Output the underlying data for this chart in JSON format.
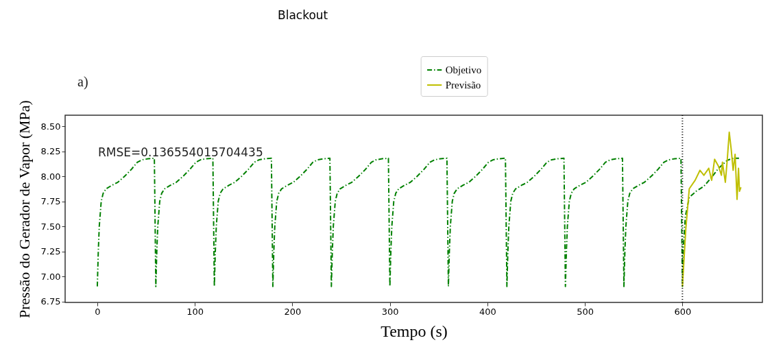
{
  "chart_data": {
    "type": "line",
    "title": "Blackout",
    "xlabel": "Tempo (s)",
    "ylabel": "Pressão do Gerador de Vapor (MPa)",
    "annotations": [
      "a)",
      "RMSE=0.136554015704435"
    ],
    "xlim": [
      -33,
      682
    ],
    "xticks": [
      0,
      100,
      200,
      300,
      400,
      500,
      600
    ],
    "ylim": [
      6.74,
      8.61
    ],
    "yticks": [
      {
        "value": 6.75,
        "label": "6.75"
      },
      {
        "value": 7.0,
        "label": "7.00"
      },
      {
        "value": 7.25,
        "label": "7.25"
      },
      {
        "value": 7.5,
        "label": "7.50"
      },
      {
        "value": 7.75,
        "label": "7.75"
      },
      {
        "value": 8.0,
        "label": "8.00"
      },
      {
        "value": 8.25,
        "label": "8.25"
      },
      {
        "value": 8.5,
        "label": "8.50"
      }
    ],
    "legend": "top",
    "grid": false,
    "ref_lines": [
      {
        "axis": "x",
        "value": 600,
        "color": "#000000",
        "line_style": "dotted"
      }
    ],
    "series": [
      {
        "name": "Objetivo",
        "color": "#008000",
        "line_style": "dashdot",
        "x": [
          0,
          1,
          2,
          4,
          6,
          9,
          15,
          21,
          28,
          35,
          41,
          46,
          52,
          58.5,
          60,
          61,
          62,
          64,
          66,
          69,
          75,
          81,
          88,
          95,
          101,
          106,
          112,
          118.5,
          120,
          121,
          122,
          124,
          126,
          129,
          135,
          141,
          148,
          155,
          161,
          166,
          172,
          178.5,
          180,
          181,
          182,
          184,
          186,
          189,
          195,
          201,
          208,
          215,
          221,
          226,
          232,
          238.5,
          240,
          241,
          242,
          244,
          246,
          249,
          255,
          261,
          268,
          275,
          281,
          286,
          292,
          298.5,
          300,
          301,
          302,
          304,
          306,
          309,
          315,
          321,
          328,
          335,
          341,
          346,
          352,
          358.5,
          360,
          361,
          362,
          364,
          366,
          369,
          375,
          381,
          388,
          395,
          401,
          406,
          412,
          418.5,
          420,
          421,
          422,
          424,
          426,
          429,
          435,
          441,
          448,
          455,
          461,
          466,
          472,
          478.5,
          480,
          481,
          482,
          484,
          486,
          489,
          495,
          501,
          508,
          515,
          521,
          526,
          532,
          538.5,
          540,
          541,
          542,
          544,
          546,
          549,
          555,
          561,
          568,
          575,
          581,
          586,
          592,
          598.5,
          600,
          601,
          603,
          607,
          614,
          622,
          630,
          637,
          646,
          652,
          658
        ],
        "values": [
          6.9,
          7.25,
          7.5,
          7.75,
          7.83,
          7.875,
          7.91,
          7.94,
          8.0,
          8.07,
          8.14,
          8.165,
          8.175,
          8.18,
          6.9,
          7.25,
          7.5,
          7.75,
          7.83,
          7.875,
          7.91,
          7.94,
          8.0,
          8.07,
          8.14,
          8.165,
          8.175,
          8.18,
          6.9,
          7.25,
          7.5,
          7.75,
          7.83,
          7.875,
          7.91,
          7.94,
          8.0,
          8.07,
          8.14,
          8.165,
          8.175,
          8.18,
          6.9,
          7.25,
          7.5,
          7.75,
          7.83,
          7.875,
          7.91,
          7.94,
          8.0,
          8.07,
          8.14,
          8.165,
          8.175,
          8.18,
          6.9,
          7.25,
          7.5,
          7.75,
          7.83,
          7.875,
          7.91,
          7.94,
          8.0,
          8.07,
          8.14,
          8.165,
          8.175,
          8.18,
          6.9,
          7.25,
          7.5,
          7.75,
          7.83,
          7.875,
          7.91,
          7.94,
          8.0,
          8.07,
          8.14,
          8.165,
          8.175,
          8.18,
          6.9,
          7.25,
          7.5,
          7.75,
          7.83,
          7.875,
          7.91,
          7.94,
          8.0,
          8.07,
          8.14,
          8.165,
          8.175,
          8.18,
          6.9,
          7.25,
          7.5,
          7.75,
          7.83,
          7.875,
          7.91,
          7.94,
          8.0,
          8.07,
          8.14,
          8.165,
          8.175,
          8.18,
          6.9,
          7.25,
          7.5,
          7.75,
          7.83,
          7.875,
          7.91,
          7.94,
          8.0,
          8.07,
          8.14,
          8.165,
          8.175,
          8.18,
          6.9,
          7.25,
          7.5,
          7.75,
          7.83,
          7.875,
          7.91,
          7.94,
          8.0,
          8.07,
          8.14,
          8.165,
          8.175,
          8.18,
          6.9,
          7.3,
          7.6,
          7.79,
          7.85,
          7.9,
          7.99,
          8.08,
          8.16,
          8.18,
          8.18
        ]
      },
      {
        "name": "Previsão",
        "color": "#bfbf00",
        "line_style": "solid",
        "x": [
          600,
          603.5,
          607,
          613,
          618,
          622,
          627,
          630,
          633,
          637,
          640,
          641,
          644,
          646,
          648,
          650,
          652,
          654,
          656,
          657.5,
          658.5,
          660
        ],
        "values": [
          6.9,
          7.48,
          7.875,
          7.96,
          8.06,
          8.01,
          8.08,
          7.96,
          8.17,
          8.1,
          8.01,
          8.14,
          7.94,
          8.17,
          8.44,
          8.27,
          8.06,
          8.22,
          7.77,
          8.08,
          7.85,
          7.89
        ]
      }
    ]
  }
}
